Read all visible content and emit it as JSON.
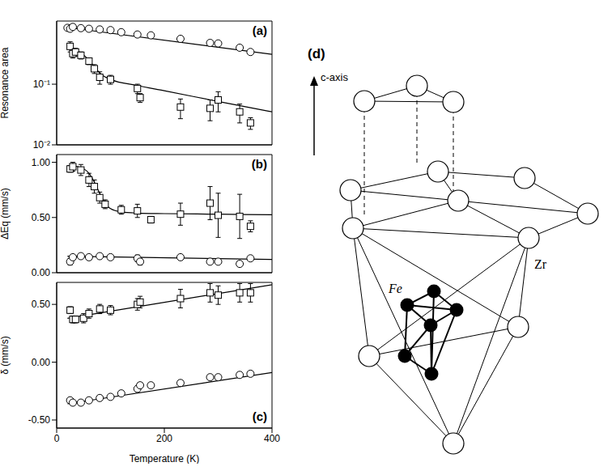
{
  "chart_data": [
    {
      "type": "scatter",
      "title": "(a)",
      "y_label": "Resonance area",
      "log": "y",
      "tick_labels": "y",
      "xlim": [
        0,
        400
      ],
      "xticks": [
        0,
        200,
        400
      ],
      "ylim": [
        0.01,
        1.1
      ],
      "yticks": [
        {
          "value": 0.01,
          "label": "10⁻²"
        },
        {
          "value": 0.1,
          "label": "10⁻¹"
        }
      ],
      "series": [
        {
          "type": "scatter",
          "marker": "circle",
          "color": "#000000",
          "x": [
            20,
            25,
            30,
            45,
            60,
            80,
            100,
            120,
            150,
            175,
            230,
            285,
            300,
            340,
            360
          ],
          "values": [
            0.85,
            0.82,
            0.88,
            0.84,
            0.82,
            0.8,
            0.78,
            0.72,
            0.66,
            0.64,
            0.56,
            0.48,
            0.47,
            0.4,
            0.34
          ]
        },
        {
          "type": "scatter",
          "marker": "square",
          "color": "#000000",
          "x": [
            25,
            30,
            35,
            45,
            60,
            70,
            80,
            100,
            150,
            155,
            230,
            285,
            300,
            340,
            360
          ],
          "values": [
            0.42,
            0.32,
            0.34,
            0.3,
            0.24,
            0.18,
            0.13,
            0.12,
            0.085,
            0.06,
            0.042,
            0.04,
            0.055,
            0.035,
            0.023
          ],
          "errors": [
            0.08,
            0.05,
            0.05,
            0.04,
            0.03,
            0.03,
            0.03,
            0.02,
            0.015,
            0.01,
            0.015,
            0.015,
            0.02,
            0.012,
            0.005
          ]
        },
        {
          "type": "line",
          "line_style": "solid",
          "color": "#000000",
          "x": [
            20,
            400
          ],
          "values": [
            0.86,
            0.31
          ]
        },
        {
          "type": "line",
          "line_style": "solid",
          "color": "#000000",
          "x": [
            20,
            40,
            60,
            75,
            85,
            100,
            150,
            200,
            300,
            400
          ],
          "values": [
            0.42,
            0.35,
            0.25,
            0.17,
            0.14,
            0.12,
            0.095,
            0.078,
            0.052,
            0.035
          ]
        }
      ]
    },
    {
      "type": "scatter",
      "title": "(b)",
      "y_label": "ΔEq (mm/s)",
      "tick_labels": "y",
      "xlim": [
        0,
        400
      ],
      "xticks": [
        0,
        200,
        400
      ],
      "ylim": [
        0,
        1.07
      ],
      "yticks": [
        {
          "value": 0,
          "label": "0.00"
        },
        {
          "value": 0.5,
          "label": "0.50"
        },
        {
          "value": 1,
          "label": "1.00"
        }
      ],
      "series": [
        {
          "type": "scatter",
          "marker": "square",
          "color": "#000000",
          "x": [
            25,
            30,
            45,
            60,
            70,
            80,
            90,
            120,
            150,
            175,
            230,
            285,
            300,
            340,
            360
          ],
          "values": [
            0.94,
            0.96,
            0.93,
            0.84,
            0.78,
            0.68,
            0.62,
            0.57,
            0.56,
            0.48,
            0.53,
            0.63,
            0.52,
            0.51,
            0.42
          ],
          "errors": [
            0.03,
            0.04,
            0.05,
            0.06,
            0.06,
            0.05,
            0.04,
            0.04,
            0.06,
            0.03,
            0.1,
            0.15,
            0.2,
            0.2,
            0.05
          ]
        },
        {
          "type": "scatter",
          "marker": "circle",
          "color": "#000000",
          "x": [
            25,
            30,
            45,
            60,
            80,
            100,
            150,
            155,
            230,
            285,
            300,
            340,
            360
          ],
          "values": [
            0.1,
            0.14,
            0.15,
            0.14,
            0.15,
            0.14,
            0.13,
            0.1,
            0.14,
            0.1,
            0.1,
            0.08,
            0.13
          ],
          "errors": [
            0.03,
            0.02,
            0.02,
            0.02,
            0.02,
            0.02,
            0.03,
            0.03,
            0.02,
            0.02,
            0.02,
            0.02,
            0.01
          ]
        },
        {
          "type": "line",
          "line_style": "solid",
          "color": "#000000",
          "x": [
            20,
            40,
            60,
            70,
            80,
            90,
            100,
            120,
            150,
            200,
            300,
            400
          ],
          "values": [
            0.97,
            0.96,
            0.9,
            0.82,
            0.72,
            0.63,
            0.58,
            0.55,
            0.54,
            0.535,
            0.53,
            0.525
          ]
        },
        {
          "type": "line",
          "line_style": "solid",
          "color": "#000000",
          "x": [
            20,
            400
          ],
          "values": [
            0.15,
            0.12
          ]
        }
      ]
    },
    {
      "type": "scatter",
      "title": "(c)",
      "y_label": "δ (mm/s)",
      "x_label": "Temperature (K)",
      "xlim": [
        0,
        400
      ],
      "xticks": [
        0,
        200,
        400
      ],
      "ylim": [
        -0.57,
        0.69
      ],
      "yticks": [
        {
          "value": -0.5,
          "label": "-0.50"
        },
        {
          "value": 0,
          "label": "0.00"
        },
        {
          "value": 0.5,
          "label": "0.50"
        }
      ],
      "series": [
        {
          "type": "scatter",
          "marker": "square",
          "color": "#000000",
          "x": [
            25,
            30,
            35,
            50,
            60,
            80,
            100,
            150,
            155,
            230,
            285,
            300,
            340,
            360
          ],
          "values": [
            0.45,
            0.37,
            0.37,
            0.38,
            0.42,
            0.46,
            0.45,
            0.5,
            0.52,
            0.55,
            0.6,
            0.58,
            0.6,
            0.6
          ],
          "errors": [
            0.03,
            0.03,
            0.03,
            0.04,
            0.04,
            0.04,
            0.04,
            0.05,
            0.05,
            0.08,
            0.08,
            0.08,
            0.08,
            0.08
          ]
        },
        {
          "type": "scatter",
          "marker": "circle",
          "color": "#000000",
          "x": [
            25,
            30,
            45,
            60,
            80,
            100,
            120,
            150,
            155,
            175,
            230,
            285,
            300,
            340,
            360
          ],
          "values": [
            -0.33,
            -0.35,
            -0.35,
            -0.33,
            -0.31,
            -0.3,
            -0.27,
            -0.23,
            -0.2,
            -0.2,
            -0.18,
            -0.13,
            -0.13,
            -0.11,
            -0.1
          ],
          "errors": [
            0.02,
            0.02,
            0.02,
            0.02,
            0.02,
            0.02,
            0.02,
            0.02,
            0.02,
            0.02,
            0.02,
            0.02,
            0.02,
            0.02,
            0.02
          ]
        },
        {
          "type": "line",
          "line_style": "solid",
          "color": "#000000",
          "x": [
            20,
            400
          ],
          "values": [
            0.38,
            0.67
          ]
        },
        {
          "type": "line",
          "line_style": "solid",
          "color": "#000000",
          "x": [
            20,
            400
          ],
          "values": [
            -0.36,
            -0.09
          ]
        }
      ]
    }
  ],
  "diagram": {
    "label": "(d)",
    "axis_label": "c-axis",
    "atom_labels": [
      "Fe",
      "Zr"
    ]
  }
}
